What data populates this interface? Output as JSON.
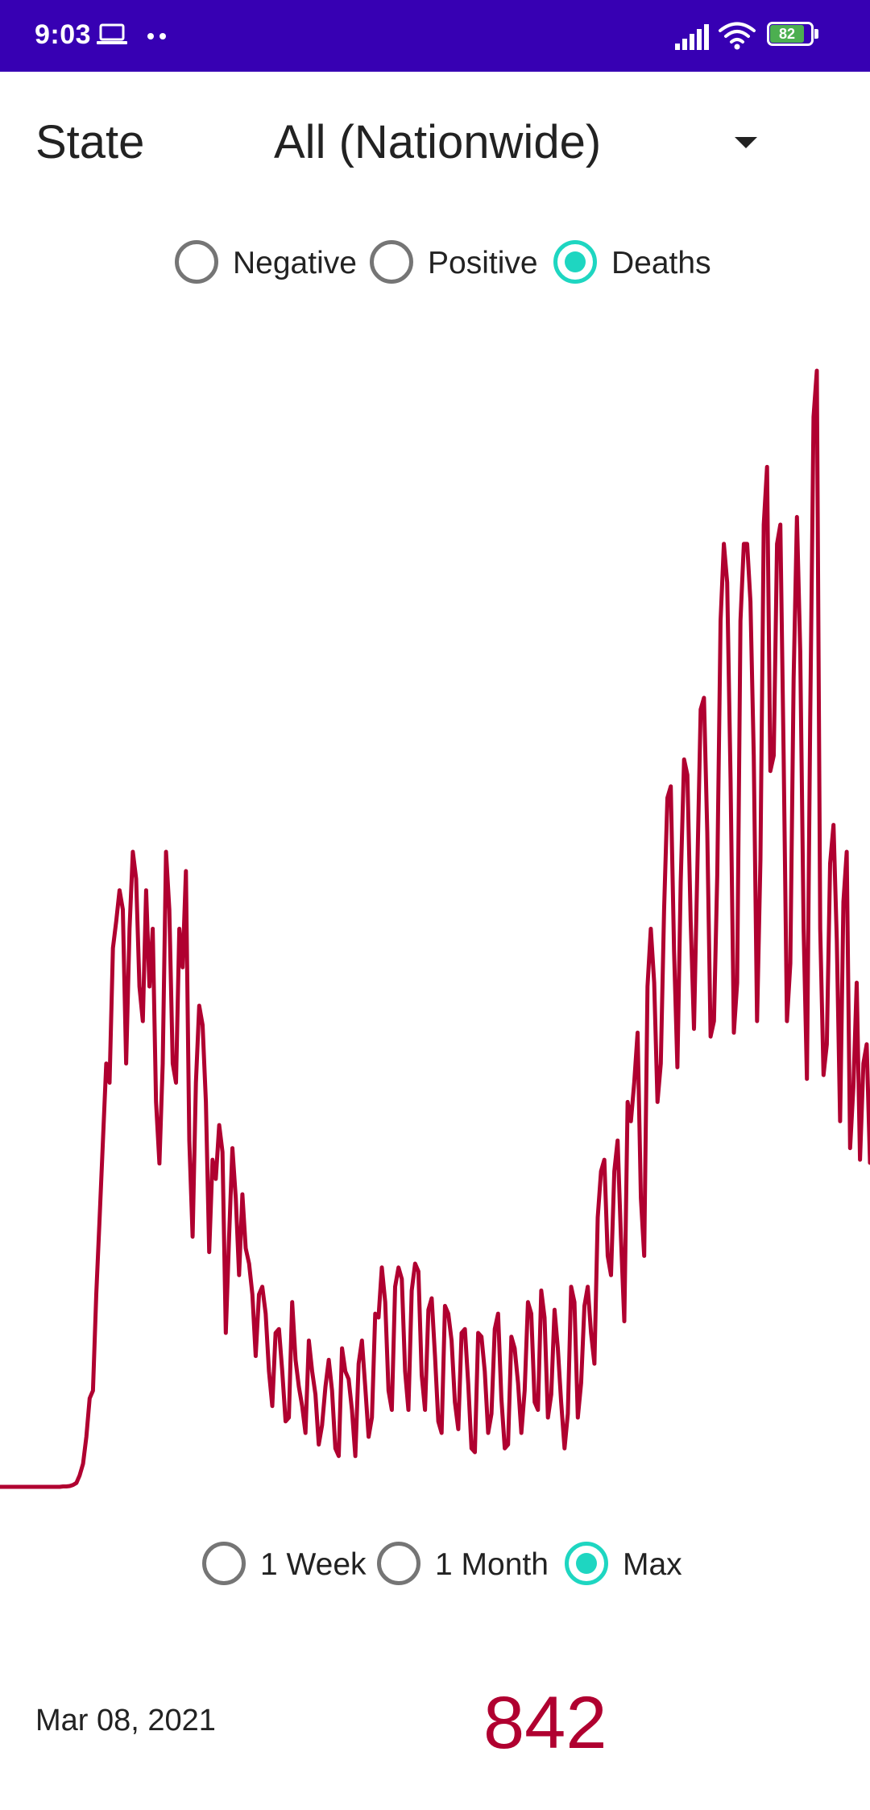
{
  "status_bar": {
    "time": "9:03",
    "battery_level": "82",
    "background_color": "#3700b3",
    "icons": [
      "laptop-icon",
      "notification-dots-icon",
      "cell-signal-icon",
      "wifi-icon",
      "battery-icon"
    ]
  },
  "state_selector": {
    "label": "State",
    "selected": "All (Nationwide)",
    "icon": "chevron-down-icon"
  },
  "metric_options": {
    "items": [
      {
        "label": "Negative",
        "checked": false
      },
      {
        "label": "Positive",
        "checked": false
      },
      {
        "label": "Deaths",
        "checked": true
      }
    ],
    "accent_color": "#1ed6c1"
  },
  "range_options": {
    "items": [
      {
        "label": "1 Week",
        "checked": false
      },
      {
        "label": "1 Month",
        "checked": false
      },
      {
        "label": "Max",
        "checked": true
      }
    ]
  },
  "readout": {
    "date": "Mar 08, 2021",
    "value": "842",
    "value_color": "#b00030"
  },
  "chart_data": {
    "type": "line",
    "line_color": "#b00030",
    "grid": false,
    "axes_visible": false,
    "series": [
      {
        "values": [
          0,
          0,
          0,
          0,
          0,
          0,
          0,
          0,
          0,
          0,
          0,
          0,
          0,
          0,
          0,
          0,
          0,
          0,
          0,
          1,
          1,
          2,
          5,
          10,
          30,
          60,
          130,
          230,
          250,
          500,
          700,
          900,
          1100,
          1050,
          1400,
          1470,
          1550,
          1500,
          1100,
          1450,
          1650,
          1580,
          1300,
          1210,
          1550,
          1300,
          1450,
          1000,
          840,
          1100,
          1650,
          1500,
          1100,
          1050,
          1450,
          1350,
          1600,
          900,
          650,
          1050,
          1250,
          1200,
          1000,
          610,
          850,
          800,
          940,
          870,
          400,
          650,
          880,
          750,
          550,
          760,
          620,
          580,
          500,
          340,
          500,
          520,
          450,
          300,
          210,
          400,
          410,
          300,
          170,
          180,
          480,
          330,
          260,
          210,
          140,
          380,
          300,
          240,
          110,
          160,
          260,
          330,
          250,
          100,
          80,
          360,
          300,
          280,
          200,
          80,
          320,
          380,
          260,
          130,
          180,
          450,
          440,
          570,
          480,
          250,
          200,
          520,
          570,
          540,
          300,
          200,
          510,
          580,
          560,
          290,
          200,
          460,
          490,
          340,
          170,
          140,
          470,
          450,
          380,
          220,
          150,
          400,
          410,
          270,
          100,
          90,
          400,
          390,
          300,
          140,
          190,
          410,
          450,
          230,
          100,
          110,
          390,
          360,
          270,
          140,
          250,
          480,
          450,
          220,
          200,
          510,
          440,
          180,
          240,
          460,
          360,
          220,
          100,
          190,
          520,
          480,
          180,
          270,
          470,
          520,
          400,
          320,
          700,
          820,
          850,
          600,
          550,
          820,
          900,
          650,
          430,
          1000,
          950,
          1050,
          1180,
          750,
          600,
          1300,
          1450,
          1310,
          1000,
          1100,
          1500,
          1790,
          1820,
          1390,
          1090,
          1570,
          1890,
          1850,
          1470,
          1190,
          1600,
          2020,
          2050,
          1700,
          1170,
          1210,
          1590,
          2250,
          2450,
          2350,
          1840,
          1180,
          1310,
          2250,
          2450,
          2450,
          2300,
          1900,
          1210,
          1630,
          2500,
          2650,
          1860,
          1900,
          2450,
          2500,
          1900,
          1210,
          1360,
          2100,
          2520,
          2170,
          1450,
          1060,
          2000,
          2780,
          2900,
          1450,
          1070,
          1150,
          1620,
          1720,
          1420,
          950,
          1520,
          1650,
          880,
          1040,
          1310,
          850,
          1100,
          1150,
          842
        ]
      }
    ]
  }
}
